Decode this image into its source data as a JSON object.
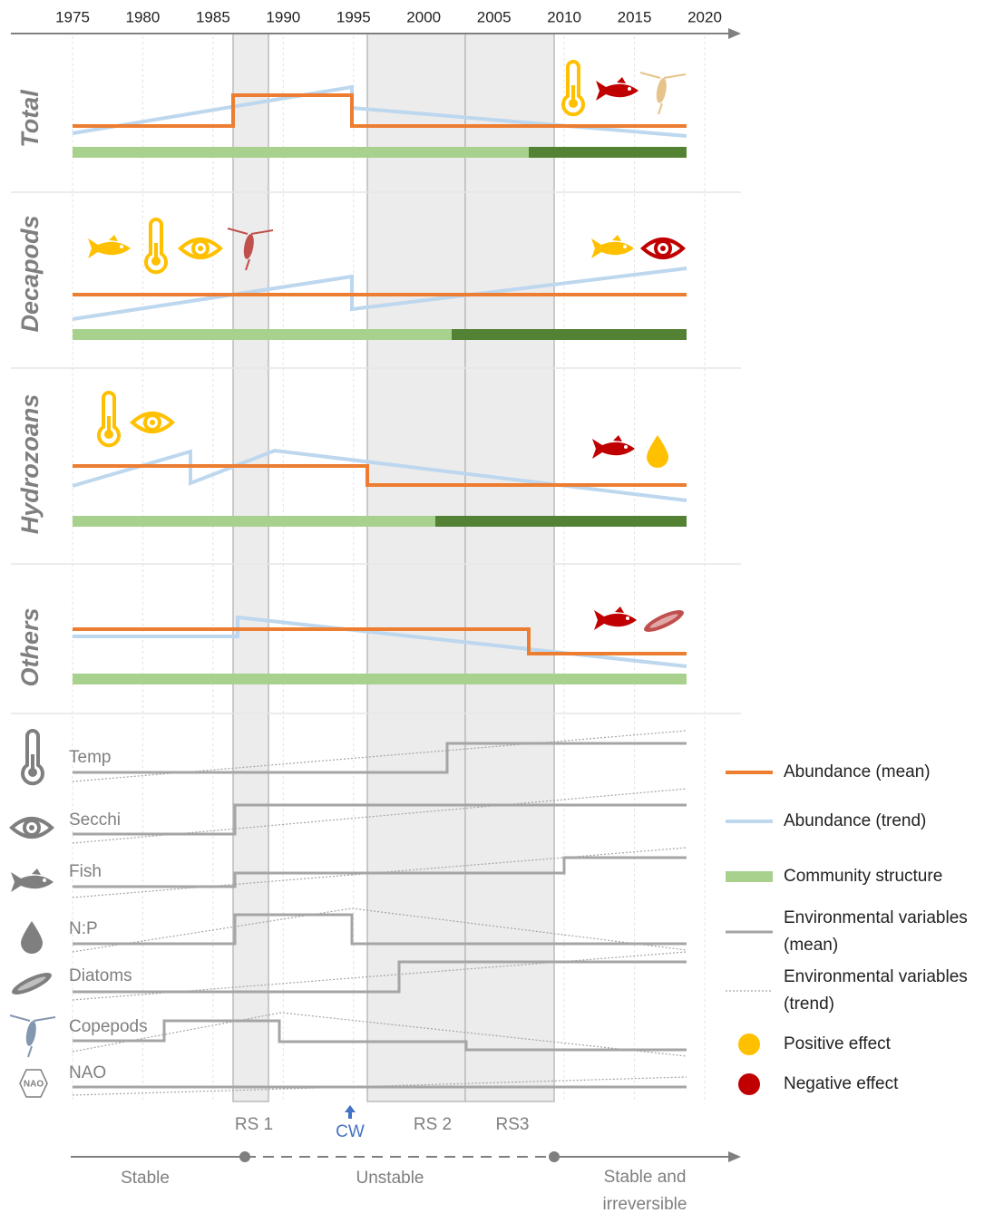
{
  "axis": {
    "years": [
      1975,
      1980,
      1985,
      1990,
      1995,
      2000,
      2005,
      2010,
      2015,
      2020
    ]
  },
  "panels": [
    {
      "label": "Total"
    },
    {
      "label": "Decapods"
    },
    {
      "label": "Hydrozoans"
    },
    {
      "label": "Others"
    }
  ],
  "environmental_variables": [
    "Temp",
    "Secchi",
    "Fish",
    "N:P",
    "Diatoms",
    "Copepods",
    "NAO"
  ],
  "nao_icon": "NAO",
  "regime_shifts": [
    "RS 1",
    "CW",
    "RS 2",
    "RS3"
  ],
  "phases": [
    "Stable",
    "Unstable",
    "Stable and irreversible"
  ],
  "legend": [
    "Abundance (mean)",
    "Abundance (trend)",
    "Community structure",
    "Environmental variables (mean)",
    "Environmental variables (trend)",
    "Positive effect",
    "Negative effect"
  ]
}
